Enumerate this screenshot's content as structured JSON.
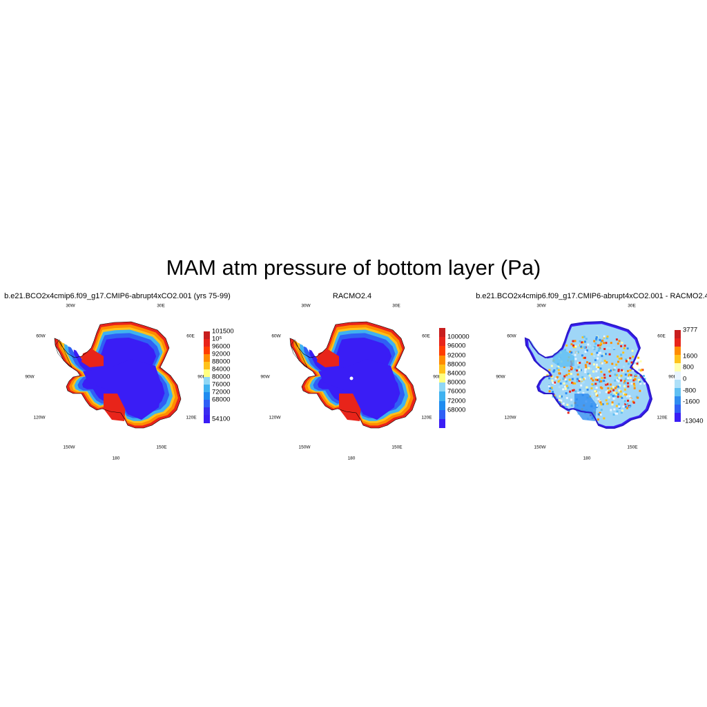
{
  "title": "MAM atm pressure of bottom layer (Pa)",
  "panels": [
    {
      "title": "b.e21.BCO2x4cmip6.f09_g17.CMIP6-abrupt4xCO2.001 (yrs 75-99)",
      "lon_labels": [
        "30W",
        "30E",
        "60W",
        "60E",
        "90W",
        "90E",
        "120W",
        "120E",
        "150W",
        "150E",
        "180"
      ],
      "colorbar": {
        "labels": [
          "101500",
          "10⁵",
          "96000",
          "92000",
          "88000",
          "84000",
          "80000",
          "76000",
          "72000",
          "68000",
          "54100"
        ],
        "colors": [
          "#c81e1e",
          "#e8241a",
          "#ff3d00",
          "#ff8c00",
          "#ffc21a",
          "#ffff80",
          "#8fd7f5",
          "#3fb2f0",
          "#1f8cf0",
          "#2f5ff5",
          "#3a2df0",
          "#3a1df5"
        ]
      }
    },
    {
      "title": "RACMO2.4",
      "lon_labels": [
        "30W",
        "30E",
        "60W",
        "60E",
        "90W",
        "90E",
        "120W",
        "120E",
        "150W",
        "150E",
        "180"
      ],
      "colorbar": {
        "labels": [
          "100000",
          "96000",
          "92000",
          "88000",
          "84000",
          "80000",
          "76000",
          "72000",
          "68000"
        ],
        "colors": [
          "#c81e1e",
          "#e8241a",
          "#ff3d00",
          "#ff8c00",
          "#ffc21a",
          "#ffff80",
          "#8fd7f5",
          "#3fb2f0",
          "#1f8cf0",
          "#2f5ff5",
          "#3a1df5"
        ]
      }
    },
    {
      "title": "b.e21.BCO2x4cmip6.f09_g17.CMIP6-abrupt4xCO2.001 - RACMO2.4",
      "lon_labels": [
        "30W",
        "30E",
        "60W",
        "60E",
        "90W",
        "90E",
        "120W",
        "120E",
        "150W",
        "150E",
        "180"
      ],
      "colorbar": {
        "labels": [
          "3777",
          "1600",
          "800",
          "0",
          "-800",
          "-1600",
          "-13040"
        ],
        "colors": [
          "#c81e1e",
          "#e8241a",
          "#ff8c00",
          "#ffc21a",
          "#ffffb0",
          "#e8f4ff",
          "#aee0f8",
          "#5fbff2",
          "#2f8cf0",
          "#2f5ff5",
          "#3a1df5"
        ]
      }
    }
  ]
}
